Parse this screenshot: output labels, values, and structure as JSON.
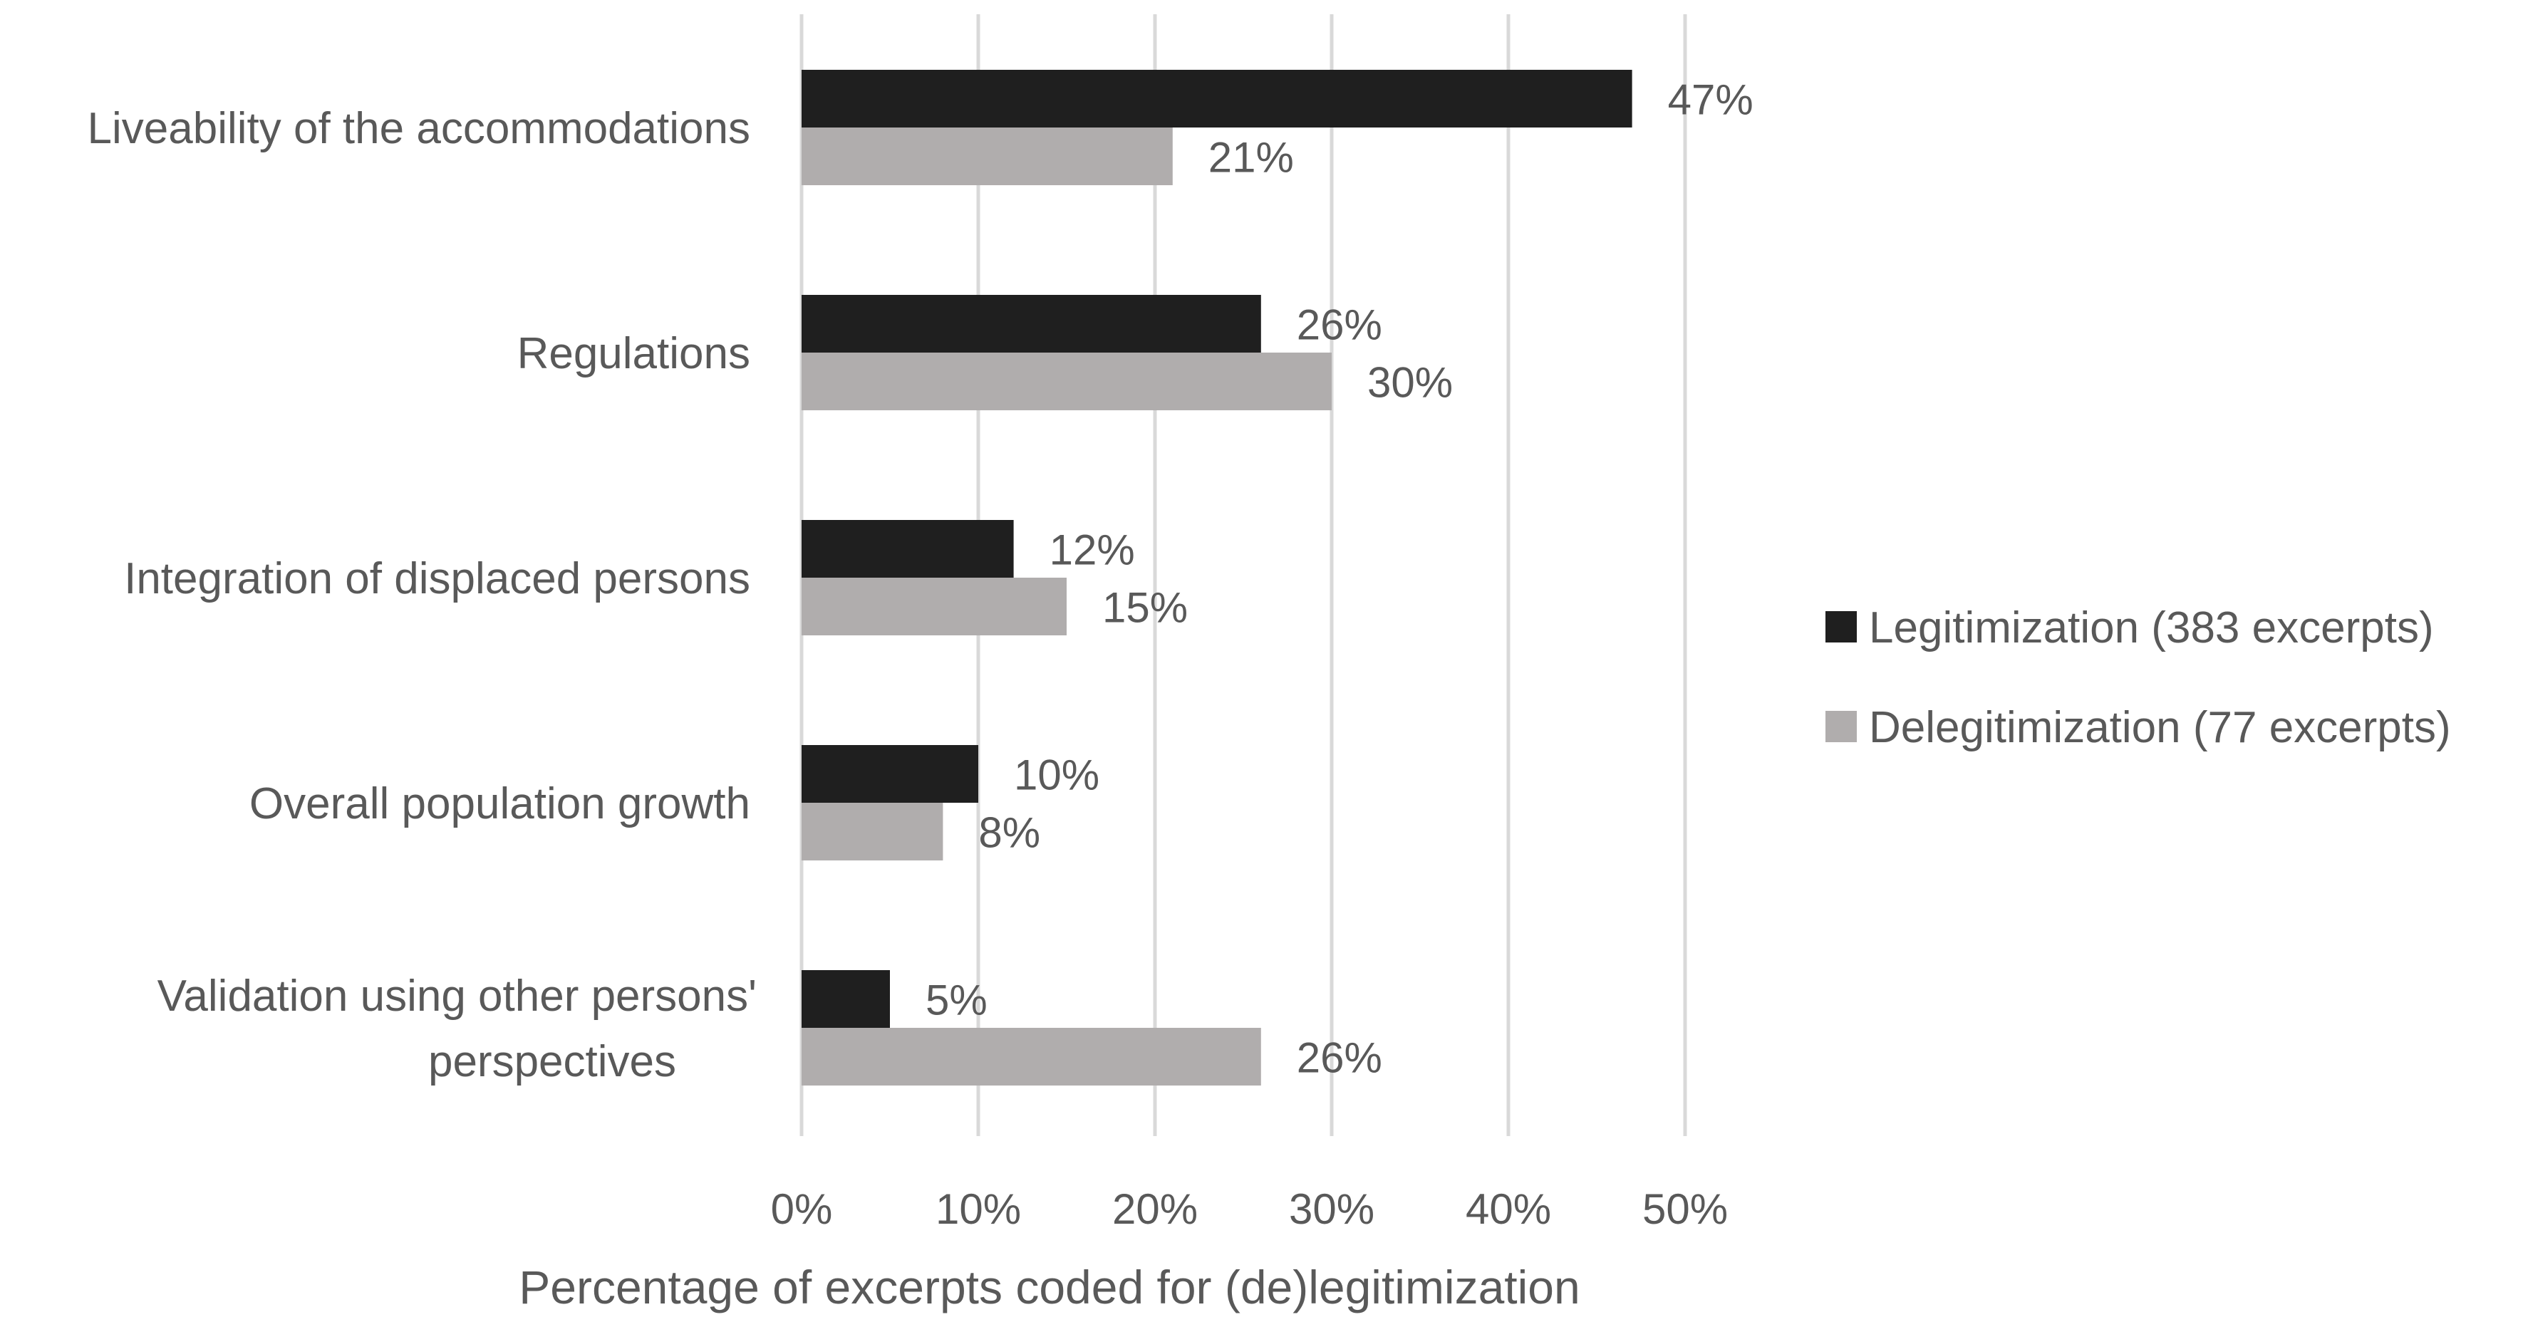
{
  "chart_data": {
    "type": "bar",
    "orientation": "horizontal",
    "title": "",
    "xlabel": "Percentage of excerpts coded for (de)legitimization",
    "ylabel": "",
    "xlim": [
      0,
      50
    ],
    "xticks": [
      "0%",
      "10%",
      "20%",
      "30%",
      "40%",
      "50%"
    ],
    "xtick_values": [
      0,
      10,
      20,
      30,
      40,
      50
    ],
    "grid": true,
    "legend_position": "right",
    "categories": [
      [
        "Liveability of the accommodations"
      ],
      [
        "Regulations"
      ],
      [
        "Integration of displaced persons"
      ],
      [
        "Overall population growth"
      ],
      [
        "Validation using other persons'",
        "perspectives"
      ]
    ],
    "series": [
      {
        "name": "Legitimization (383 excerpts)",
        "color": "#1f1f1f",
        "values": [
          47,
          26,
          12,
          10,
          5
        ],
        "labels": [
          "47%",
          "26%",
          "12%",
          "10%",
          "5%"
        ]
      },
      {
        "name": "Delegitimization (77 excerpts)",
        "color": "#b0adad",
        "values": [
          21,
          30,
          15,
          8,
          26
        ],
        "labels": [
          "21%",
          "30%",
          "15%",
          "8%",
          "26%"
        ]
      }
    ],
    "colors": {
      "grid": "#d9d9d9",
      "text": "#595959",
      "axis_title": "#595959"
    }
  }
}
